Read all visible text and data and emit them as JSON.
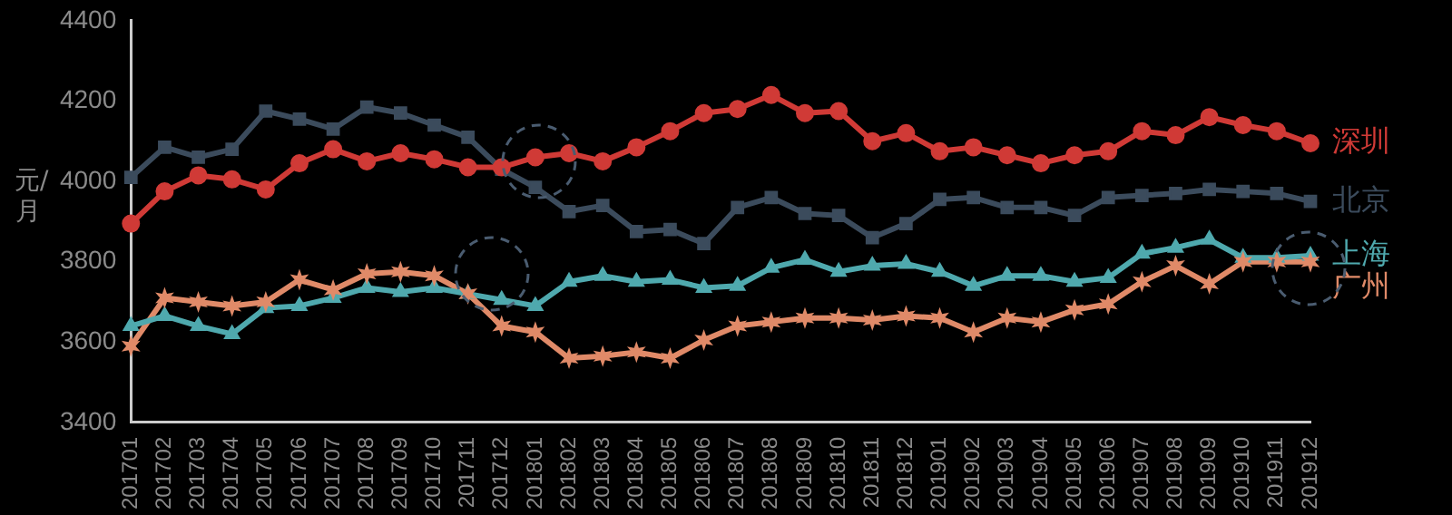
{
  "chart_data": {
    "type": "line",
    "ylabel": "元/月",
    "categories": [
      "201701",
      "201702",
      "201703",
      "201704",
      "201705",
      "201706",
      "201707",
      "201708",
      "201709",
      "201710",
      "201711",
      "201712",
      "201801",
      "201802",
      "201803",
      "201804",
      "201805",
      "201806",
      "201807",
      "201808",
      "201809",
      "201810",
      "201811",
      "201812",
      "201901",
      "201902",
      "201903",
      "201904",
      "201905",
      "201906",
      "201907",
      "201908",
      "201909",
      "201910",
      "201911",
      "201912"
    ],
    "series": [
      {
        "name": "深圳",
        "color": "#d03a36",
        "marker": "circle",
        "values": [
          3895,
          3975,
          4015,
          4005,
          3980,
          4045,
          4080,
          4050,
          4070,
          4055,
          4035,
          4035,
          4060,
          4070,
          4050,
          4085,
          4125,
          4170,
          4180,
          4215,
          4170,
          4175,
          4100,
          4120,
          4075,
          4085,
          4065,
          4045,
          4065,
          4075,
          4125,
          4115,
          4160,
          4140,
          4125,
          4095
        ]
      },
      {
        "name": "北京",
        "color": "#3b4b5c",
        "marker": "square",
        "values": [
          4010,
          4085,
          4060,
          4080,
          4175,
          4155,
          4130,
          4185,
          4170,
          4140,
          4110,
          4030,
          3985,
          3925,
          3940,
          3875,
          3880,
          3845,
          3935,
          3960,
          3920,
          3915,
          3860,
          3895,
          3955,
          3960,
          3935,
          3935,
          3915,
          3960,
          3965,
          3970,
          3980,
          3975,
          3970,
          3950
        ]
      },
      {
        "name": "上海",
        "color": "#4fa9ae",
        "marker": "triangle",
        "values": [
          3640,
          3665,
          3640,
          3620,
          3685,
          3690,
          3710,
          3735,
          3725,
          3735,
          3720,
          3705,
          3690,
          3750,
          3765,
          3750,
          3755,
          3735,
          3740,
          3785,
          3805,
          3775,
          3790,
          3795,
          3775,
          3740,
          3765,
          3765,
          3750,
          3760,
          3820,
          3835,
          3855,
          3810,
          3810,
          3815
        ]
      },
      {
        "name": "广州",
        "color": "#e08a68",
        "marker": "cross",
        "values": [
          3590,
          3710,
          3700,
          3690,
          3700,
          3755,
          3730,
          3770,
          3775,
          3765,
          3720,
          3640,
          3625,
          3560,
          3565,
          3575,
          3560,
          3605,
          3640,
          3650,
          3660,
          3660,
          3655,
          3665,
          3660,
          3625,
          3660,
          3650,
          3680,
          3695,
          3750,
          3790,
          3745,
          3800,
          3800,
          3800
        ]
      }
    ],
    "ylim": [
      3400,
      4400
    ],
    "yticks": [
      3400,
      3600,
      3800,
      4000,
      4200,
      4400
    ],
    "grid": false,
    "legend": false,
    "line_style": "solid"
  }
}
